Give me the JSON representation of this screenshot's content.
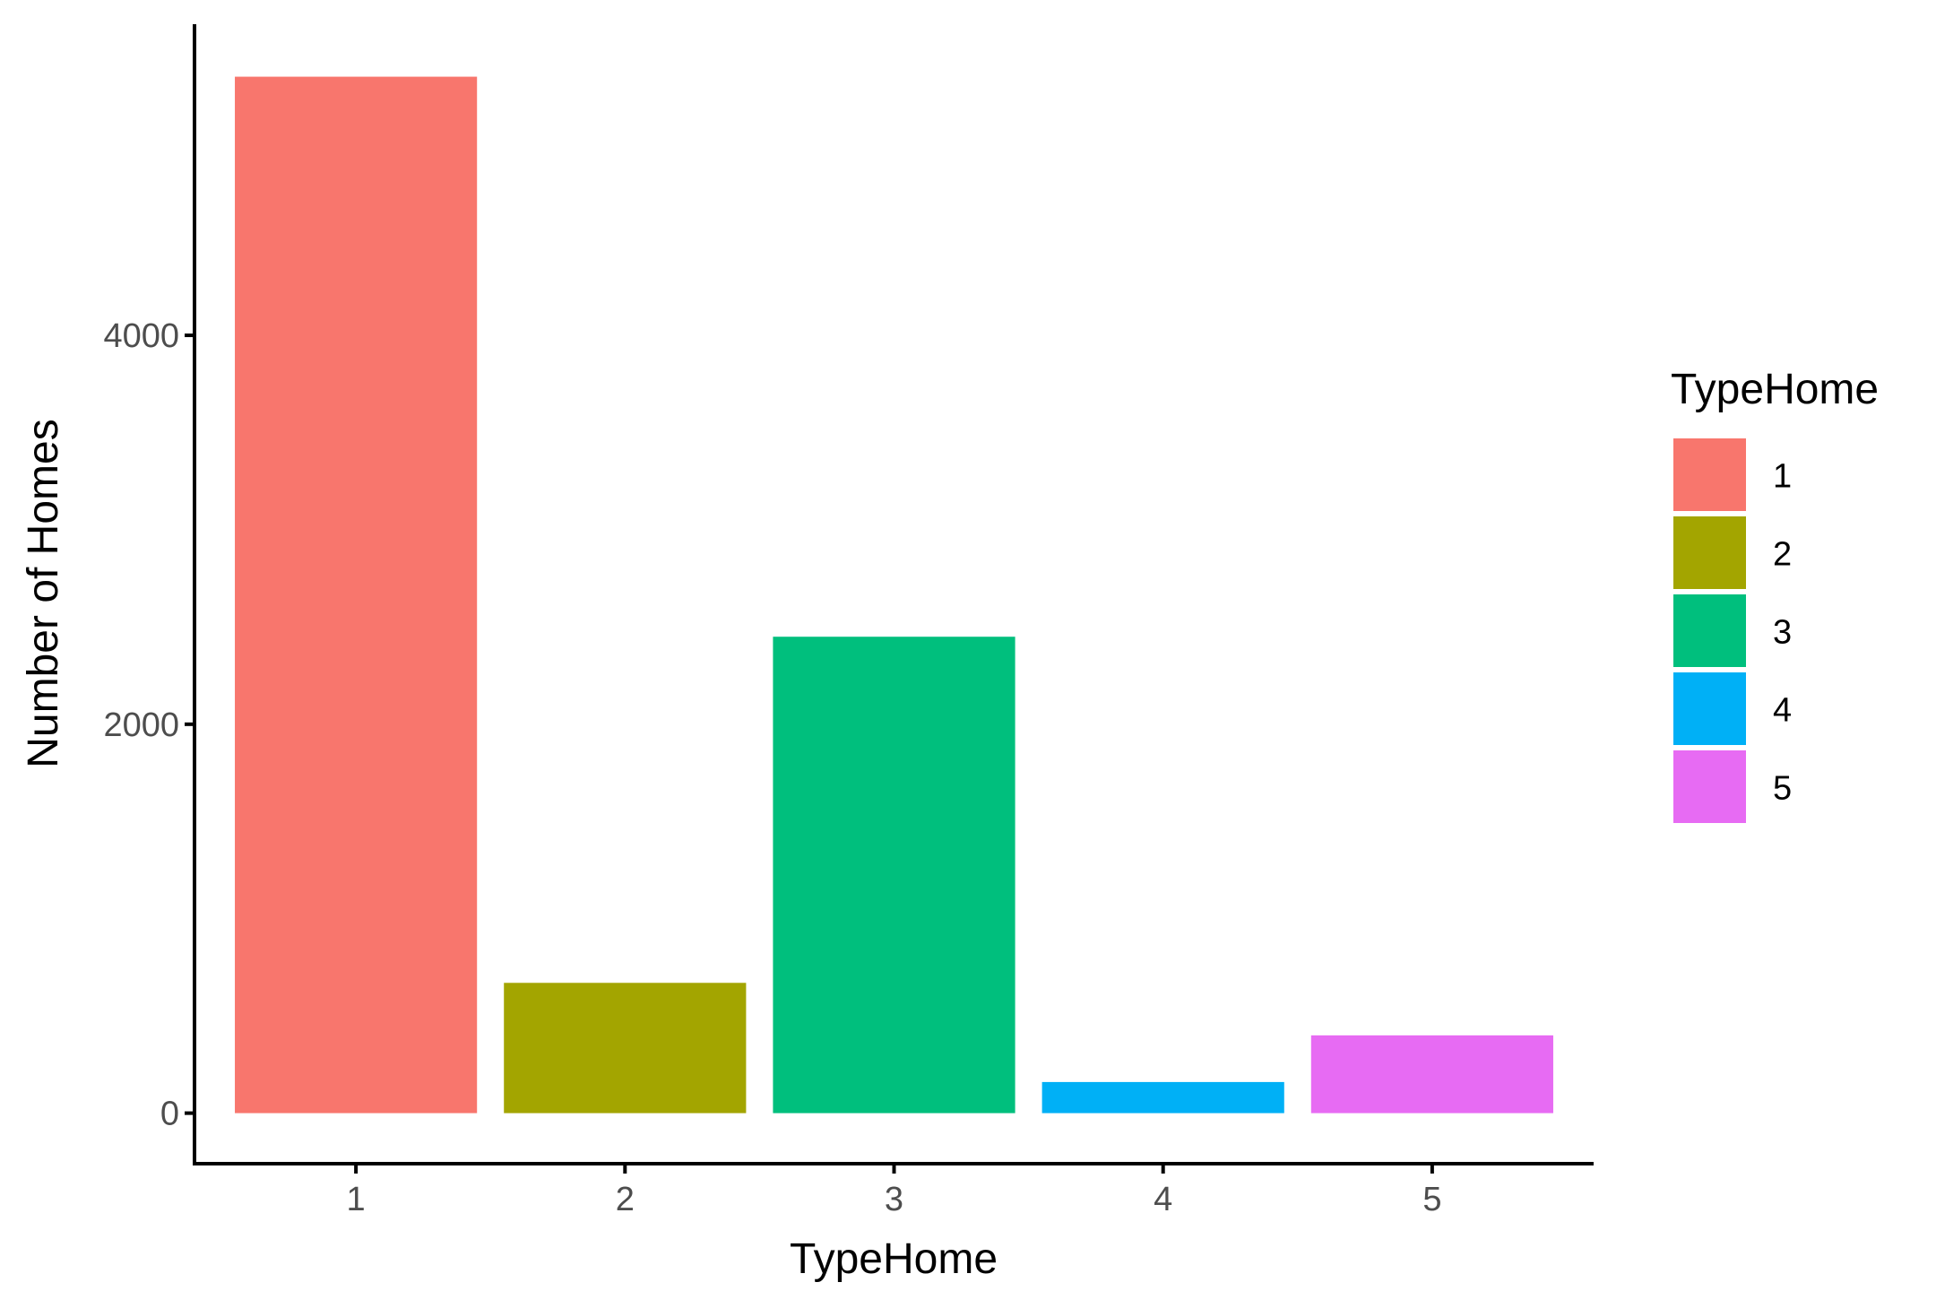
{
  "chart_data": {
    "type": "bar",
    "categories": [
      "1",
      "2",
      "3",
      "4",
      "5"
    ],
    "values": [
      5330,
      670,
      2450,
      160,
      400
    ],
    "colors": [
      "#F8766D",
      "#A3A500",
      "#00BF7D",
      "#00B0F6",
      "#E76BF3"
    ],
    "xlabel": "TypeHome",
    "ylabel": "Number of Homes",
    "ylim": [
      -260,
      5600
    ],
    "yticks": [
      0,
      2000,
      4000
    ],
    "ytick_labels": [
      "0",
      "2000",
      "4000"
    ],
    "grid": false,
    "legend": {
      "title": "TypeHome",
      "position": "right",
      "entries": [
        "1",
        "2",
        "3",
        "4",
        "5"
      ]
    }
  }
}
